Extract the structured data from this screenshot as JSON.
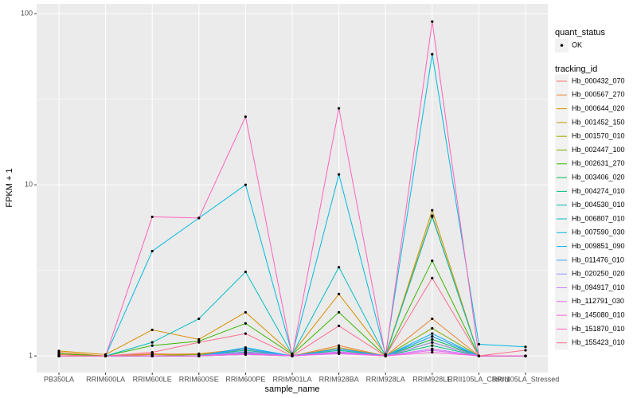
{
  "chart_data": {
    "type": "line",
    "x_label": "sample_name",
    "y_label": "FPKM + 1",
    "categories": [
      "PB350LA",
      "RRIM600LA",
      "RRIM600LE",
      "RRIM600SE",
      "RRIM600PE",
      "RRIM901LA",
      "RRIM928BA",
      "RRIM928LA",
      "RRIM928LE",
      "RRII105LA_Control",
      "RRII105LA_Stressed"
    ],
    "log_y": true,
    "ylim": [
      0.8,
      114
    ],
    "yticks": [
      1,
      10,
      100
    ],
    "minor_yticks": [
      3.162,
      31.62
    ],
    "grid": true,
    "point_color": "#000000",
    "shape_legend": {
      "title": "quant_status",
      "labels": [
        "OK"
      ]
    },
    "color_legend_title": "tracking_id",
    "series": [
      {
        "name": "Hb_000432_070",
        "color": "#F8766D",
        "values": [
          1.02,
          1.0,
          1.03,
          1.02,
          1.05,
          1.0,
          1.05,
          1.0,
          1.2,
          1.0,
          1.0
        ]
      },
      {
        "name": "Hb_000567_270",
        "color": "#EA8331",
        "values": [
          1.05,
          1.0,
          1.02,
          1.03,
          1.1,
          1.0,
          1.15,
          1.0,
          1.65,
          1.0,
          1.0
        ]
      },
      {
        "name": "Hb_000644_020",
        "color": "#D89000",
        "values": [
          1.07,
          1.02,
          1.42,
          1.25,
          1.8,
          1.03,
          2.3,
          1.02,
          6.6,
          1.0,
          1.0
        ]
      },
      {
        "name": "Hb_001452_150",
        "color": "#C09B00",
        "values": [
          1.0,
          1.0,
          1.02,
          1.02,
          1.08,
          1.0,
          1.12,
          1.0,
          7.1,
          1.0,
          1.0
        ]
      },
      {
        "name": "Hb_001570_010",
        "color": "#A3A500",
        "values": [
          1.0,
          1.0,
          1.0,
          1.0,
          1.03,
          1.0,
          1.05,
          1.0,
          1.2,
          1.0,
          1.0
        ]
      },
      {
        "name": "Hb_002447_100",
        "color": "#7CAE00",
        "values": [
          1.0,
          1.0,
          1.0,
          1.02,
          1.05,
          1.0,
          1.08,
          1.0,
          1.45,
          1.0,
          1.0
        ]
      },
      {
        "name": "Hb_002631_270",
        "color": "#39B600",
        "values": [
          1.03,
          1.0,
          1.15,
          1.22,
          1.55,
          1.02,
          1.8,
          1.0,
          3.6,
          1.0,
          1.0
        ]
      },
      {
        "name": "Hb_003406_020",
        "color": "#00BB4E",
        "values": [
          1.0,
          1.0,
          1.0,
          1.0,
          1.02,
          1.0,
          1.04,
          1.0,
          1.25,
          1.0,
          1.0
        ]
      },
      {
        "name": "Hb_004274_010",
        "color": "#00BF7D",
        "values": [
          1.0,
          1.0,
          1.0,
          1.0,
          1.05,
          1.0,
          1.05,
          1.0,
          1.15,
          1.0,
          1.0
        ]
      },
      {
        "name": "Hb_004530_010",
        "color": "#00C1A3",
        "values": [
          1.0,
          1.0,
          1.0,
          1.0,
          1.08,
          1.0,
          1.08,
          1.0,
          1.3,
          1.0,
          1.0
        ]
      },
      {
        "name": "Hb_006807_010",
        "color": "#00BFC4",
        "values": [
          1.0,
          1.0,
          1.2,
          1.65,
          3.1,
          1.02,
          3.3,
          1.0,
          6.5,
          1.0,
          1.0
        ]
      },
      {
        "name": "Hb_007590_030",
        "color": "#00BAE0",
        "values": [
          1.0,
          1.0,
          4.1,
          6.4,
          10,
          1.02,
          11.5,
          1.02,
          58,
          1.17,
          1.13
        ]
      },
      {
        "name": "Hb_009851_090",
        "color": "#00B0F6",
        "values": [
          1.0,
          1.0,
          1.0,
          1.0,
          1.12,
          1.0,
          1.1,
          1.0,
          1.35,
          1.0,
          1.0
        ]
      },
      {
        "name": "Hb_011476_010",
        "color": "#35A2FF",
        "values": [
          1.0,
          1.0,
          1.0,
          1.0,
          1.1,
          1.0,
          1.1,
          1.0,
          1.3,
          1.0,
          1.0
        ]
      },
      {
        "name": "Hb_020250_020",
        "color": "#9590FF",
        "values": [
          1.0,
          1.0,
          1.0,
          1.0,
          1.06,
          1.0,
          1.06,
          1.0,
          1.2,
          1.0,
          1.0
        ]
      },
      {
        "name": "Hb_094917_010",
        "color": "#C77CFF",
        "values": [
          1.0,
          1.0,
          1.0,
          1.0,
          1.04,
          1.0,
          1.04,
          1.0,
          1.1,
          1.0,
          1.0
        ]
      },
      {
        "name": "Hb_112791_030",
        "color": "#E76BF3",
        "values": [
          1.0,
          1.0,
          1.0,
          1.0,
          1.02,
          1.0,
          1.03,
          1.0,
          1.08,
          1.0,
          1.0
        ]
      },
      {
        "name": "Hb_145080_010",
        "color": "#FA62DB",
        "values": [
          1.0,
          1.0,
          1.0,
          1.0,
          1.03,
          1.0,
          1.05,
          1.0,
          1.05,
          1.0,
          1.0
        ]
      },
      {
        "name": "Hb_151870_010",
        "color": "#FF62BC",
        "values": [
          1.0,
          1.0,
          6.5,
          6.4,
          25,
          1.0,
          28,
          1.0,
          90,
          1.0,
          1.0
        ]
      },
      {
        "name": "Hb_155423_010",
        "color": "#FF6C91",
        "values": [
          1.0,
          1.0,
          1.05,
          1.2,
          1.35,
          1.0,
          1.5,
          1.0,
          2.85,
          1.0,
          1.08
        ]
      }
    ]
  }
}
